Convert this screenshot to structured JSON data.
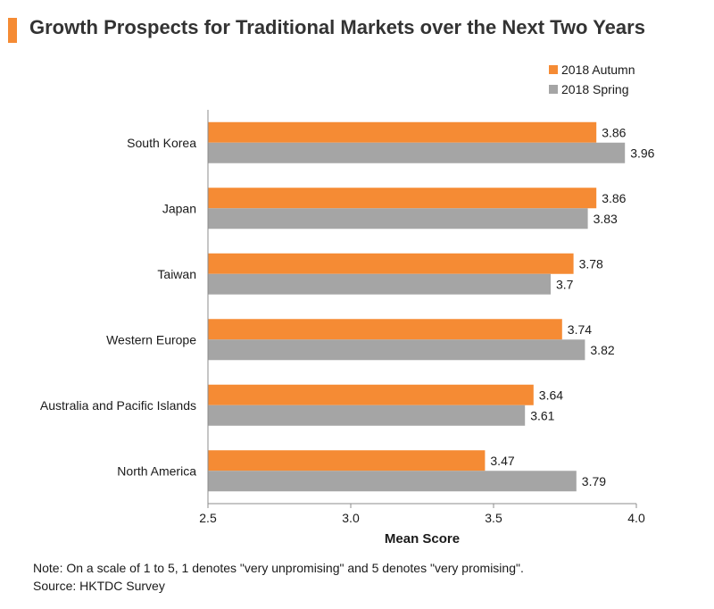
{
  "title": "Growth Prospects for Traditional Markets over the Next Two Years",
  "note": "Note: On a scale of 1 to 5, 1 denotes \"very unpromising\" and 5 denotes \"very promising\".",
  "source": "Source: HKTDC Survey",
  "colors": {
    "autumn": "#f58b34",
    "spring": "#a5a5a5",
    "axis": "#8c8c8c",
    "accent": "#f58b34"
  },
  "chart_data": {
    "type": "bar",
    "orientation": "horizontal",
    "title": "Growth Prospects for Traditional Markets over the Next Two Years",
    "xlabel": "Mean Score",
    "ylabel": "",
    "xlim": [
      2.5,
      4.0
    ],
    "xticks": [
      "2.5",
      "3.0",
      "3.5",
      "4.0"
    ],
    "categories": [
      "South Korea",
      "Japan",
      "Taiwan",
      "Western Europe",
      "Australia and Pacific Islands",
      "North America"
    ],
    "series": [
      {
        "name": "2018 Autumn",
        "values": [
          3.86,
          3.86,
          3.78,
          3.74,
          3.64,
          3.47
        ],
        "labels": [
          "3.86",
          "3.86",
          "3.78",
          "3.74",
          "3.64",
          "3.47"
        ]
      },
      {
        "name": "2018 Spring",
        "values": [
          3.96,
          3.83,
          3.7,
          3.82,
          3.61,
          3.79
        ],
        "labels": [
          "3.96",
          "3.83",
          "3.7",
          "3.82",
          "3.61",
          "3.79"
        ]
      }
    ],
    "legend_position": "top-right",
    "grid": false
  }
}
